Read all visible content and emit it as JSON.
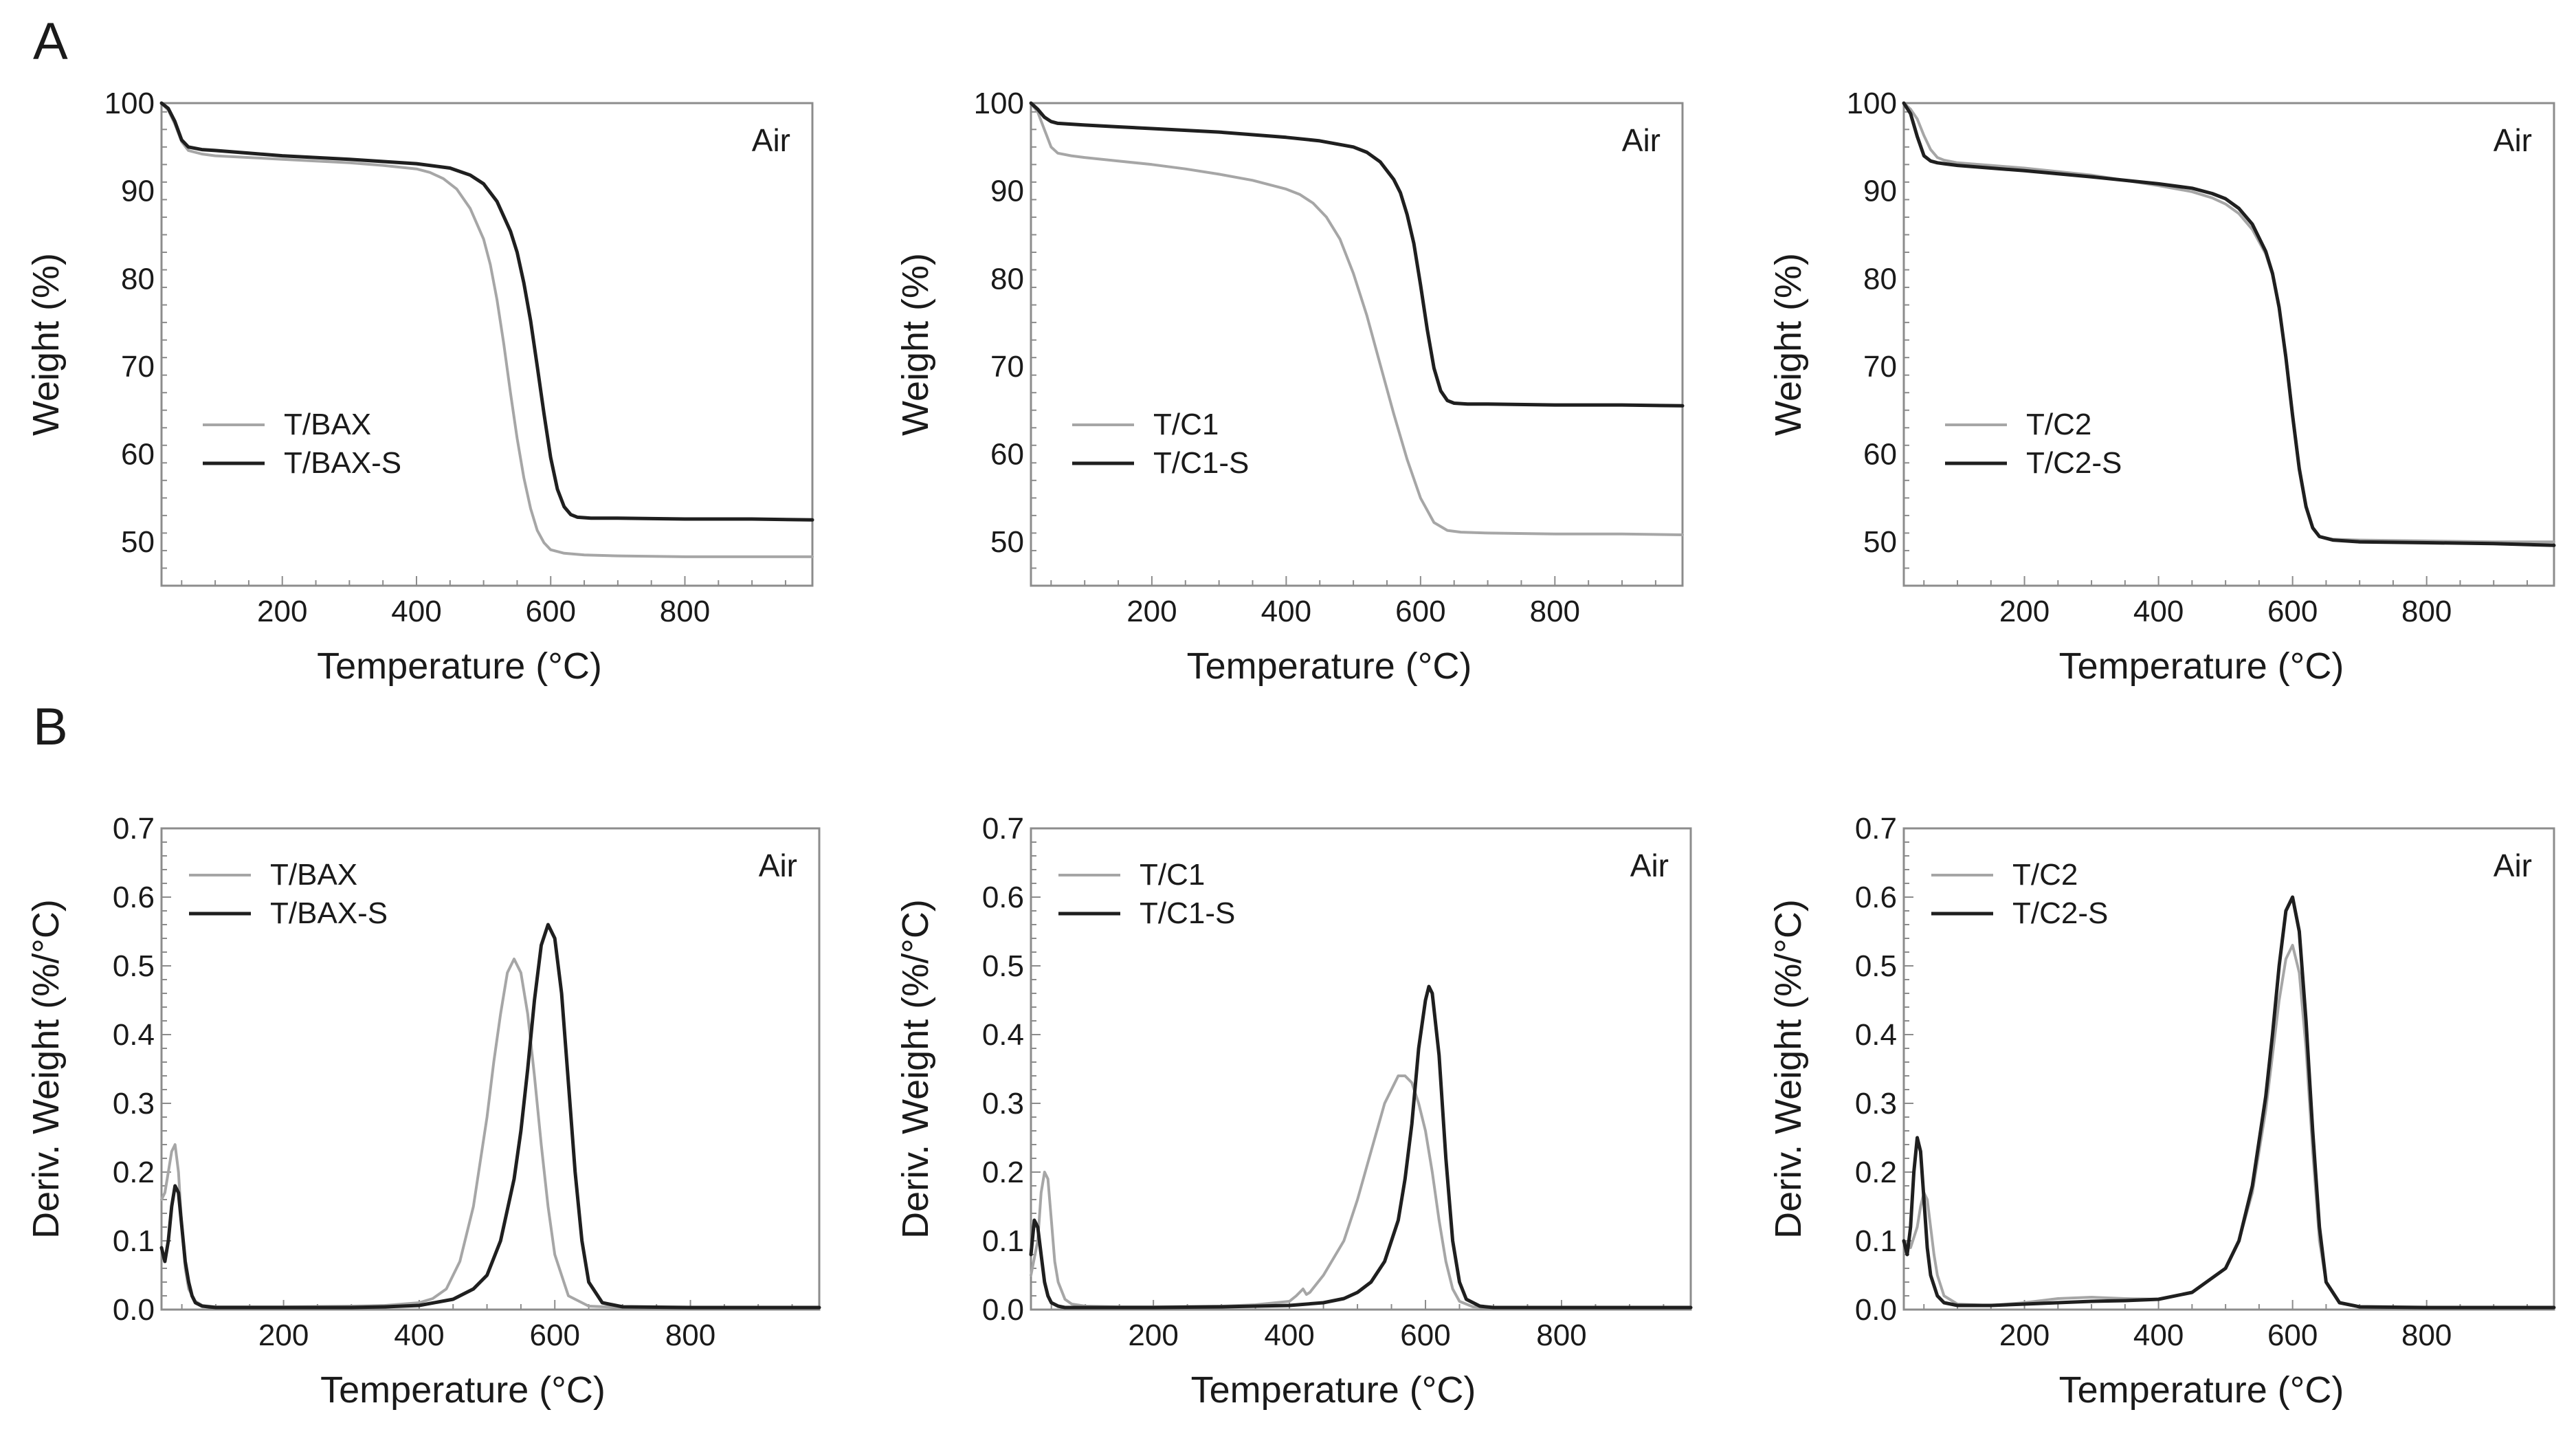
{
  "figure": {
    "panel_labels": [
      "A",
      "B"
    ]
  },
  "colors": {
    "series_light": "#a6a6a6",
    "series_dark": "#1f1f1f",
    "axis": "#8c8c8c",
    "text": "#1a1a1a"
  },
  "chart_data": [
    {
      "id": "A1",
      "type": "line",
      "xlabel": "Temperature (°C)",
      "ylabel": "Weight (%)",
      "xlim": [
        20,
        990
      ],
      "ylim": [
        45,
        100
      ],
      "xticks": [
        200,
        400,
        600,
        800
      ],
      "yticks": [
        50,
        60,
        70,
        80,
        90,
        100
      ],
      "annotation": "Air",
      "legend_position": "lower-left",
      "series": [
        {
          "name": "T/BAX",
          "color": "light",
          "x": [
            20,
            30,
            40,
            50,
            60,
            80,
            100,
            150,
            200,
            250,
            300,
            350,
            400,
            420,
            440,
            460,
            480,
            500,
            510,
            520,
            530,
            540,
            550,
            560,
            570,
            580,
            590,
            600,
            620,
            650,
            700,
            800,
            900,
            990
          ],
          "y": [
            100,
            99.2,
            97.6,
            95.6,
            94.6,
            94.2,
            94.0,
            93.8,
            93.6,
            93.4,
            93.2,
            92.9,
            92.5,
            92.1,
            91.4,
            90.2,
            88.0,
            84.5,
            81.6,
            77.6,
            72.6,
            67.0,
            61.8,
            57.3,
            53.8,
            51.3,
            49.9,
            49.1,
            48.7,
            48.5,
            48.4,
            48.3,
            48.3,
            48.3
          ]
        },
        {
          "name": "T/BAX-S",
          "color": "dark",
          "x": [
            20,
            30,
            40,
            50,
            60,
            80,
            100,
            150,
            200,
            300,
            400,
            450,
            480,
            500,
            520,
            540,
            550,
            560,
            570,
            580,
            590,
            600,
            610,
            620,
            630,
            640,
            660,
            700,
            800,
            900,
            990
          ],
          "y": [
            100,
            99.4,
            97.9,
            95.8,
            95.0,
            94.7,
            94.6,
            94.3,
            94.0,
            93.6,
            93.1,
            92.6,
            91.8,
            90.8,
            88.8,
            85.4,
            83.0,
            79.5,
            75.2,
            70.0,
            64.6,
            59.6,
            56.0,
            54.0,
            53.1,
            52.8,
            52.7,
            52.7,
            52.6,
            52.6,
            52.5
          ]
        }
      ]
    },
    {
      "id": "A2",
      "type": "line",
      "xlabel": "Temperature (°C)",
      "ylabel": "Weight (%)",
      "xlim": [
        20,
        990
      ],
      "ylim": [
        45,
        100
      ],
      "xticks": [
        200,
        400,
        600,
        800
      ],
      "yticks": [
        50,
        60,
        70,
        80,
        90,
        100
      ],
      "annotation": "Air",
      "legend_position": "lower-left",
      "series": [
        {
          "name": "T/C1",
          "color": "light",
          "x": [
            20,
            30,
            40,
            50,
            60,
            80,
            100,
            150,
            200,
            250,
            300,
            350,
            400,
            420,
            440,
            460,
            480,
            500,
            520,
            540,
            560,
            580,
            600,
            620,
            640,
            660,
            700,
            800,
            900,
            990
          ],
          "y": [
            100,
            99.0,
            97.0,
            95.0,
            94.3,
            94.0,
            93.8,
            93.4,
            93.0,
            92.5,
            91.9,
            91.2,
            90.2,
            89.6,
            88.6,
            87.0,
            84.5,
            80.6,
            75.8,
            70.2,
            64.6,
            59.4,
            55.0,
            52.2,
            51.3,
            51.1,
            51.0,
            50.9,
            50.9,
            50.8
          ]
        },
        {
          "name": "T/C1-S",
          "color": "dark",
          "x": [
            20,
            30,
            40,
            50,
            60,
            80,
            100,
            150,
            200,
            300,
            400,
            450,
            500,
            520,
            540,
            560,
            570,
            580,
            590,
            600,
            610,
            620,
            630,
            640,
            650,
            670,
            700,
            800,
            900,
            990
          ],
          "y": [
            100,
            99.3,
            98.4,
            97.9,
            97.7,
            97.6,
            97.5,
            97.3,
            97.1,
            96.7,
            96.1,
            95.7,
            95.0,
            94.4,
            93.3,
            91.3,
            89.8,
            87.3,
            84.0,
            79.3,
            74.2,
            69.8,
            67.2,
            66.1,
            65.8,
            65.7,
            65.7,
            65.6,
            65.6,
            65.5
          ]
        }
      ]
    },
    {
      "id": "A3",
      "type": "line",
      "xlabel": "Temperature (°C)",
      "ylabel": "Weight (%)",
      "xlim": [
        20,
        990
      ],
      "ylim": [
        45,
        100
      ],
      "xticks": [
        200,
        400,
        600,
        800
      ],
      "yticks": [
        50,
        60,
        70,
        80,
        90,
        100
      ],
      "annotation": "Air",
      "legend_position": "lower-left",
      "series": [
        {
          "name": "T/C2",
          "color": "light",
          "x": [
            20,
            30,
            40,
            50,
            60,
            70,
            80,
            100,
            150,
            200,
            300,
            400,
            450,
            480,
            500,
            520,
            540,
            560,
            570,
            580,
            590,
            600,
            610,
            620,
            630,
            640,
            660,
            700,
            800,
            900,
            990
          ],
          "y": [
            100,
            99.3,
            98.2,
            96.3,
            94.7,
            93.8,
            93.5,
            93.2,
            92.9,
            92.6,
            91.8,
            90.6,
            89.9,
            89.2,
            88.5,
            87.4,
            85.6,
            82.8,
            80.4,
            76.6,
            71.3,
            64.8,
            58.6,
            54.2,
            51.6,
            50.6,
            50.3,
            50.2,
            50.1,
            50.0,
            50.0
          ]
        },
        {
          "name": "T/C2-S",
          "color": "dark",
          "x": [
            20,
            30,
            40,
            50,
            60,
            70,
            80,
            100,
            150,
            200,
            300,
            400,
            450,
            480,
            500,
            520,
            540,
            560,
            570,
            580,
            590,
            600,
            610,
            620,
            630,
            640,
            660,
            700,
            800,
            900,
            990
          ],
          "y": [
            100,
            98.8,
            96.2,
            94.0,
            93.4,
            93.2,
            93.1,
            92.9,
            92.6,
            92.3,
            91.6,
            90.8,
            90.3,
            89.7,
            89.1,
            88.0,
            86.2,
            83.1,
            80.6,
            76.7,
            71.0,
            64.4,
            58.3,
            54.0,
            51.6,
            50.6,
            50.2,
            50.0,
            49.9,
            49.8,
            49.6
          ]
        }
      ]
    },
    {
      "id": "B1",
      "type": "line",
      "xlabel": "Temperature (°C)",
      "ylabel": "Deriv. Weight (%/°C)",
      "xlim": [
        20,
        990
      ],
      "ylim": [
        0,
        0.7
      ],
      "xticks": [
        200,
        400,
        600,
        800
      ],
      "yticks": [
        0.0,
        0.1,
        0.2,
        0.3,
        0.4,
        0.5,
        0.6,
        0.7
      ],
      "annotation": "Air",
      "legend_position": "top-left",
      "series": [
        {
          "name": "T/BAX",
          "color": "light",
          "x": [
            20,
            25,
            30,
            35,
            40,
            45,
            50,
            55,
            60,
            70,
            80,
            100,
            150,
            200,
            300,
            350,
            400,
            420,
            440,
            460,
            480,
            500,
            510,
            520,
            530,
            540,
            550,
            560,
            570,
            580,
            590,
            600,
            620,
            650,
            700,
            800,
            900,
            990
          ],
          "y": [
            0.16,
            0.17,
            0.2,
            0.23,
            0.24,
            0.2,
            0.12,
            0.06,
            0.03,
            0.012,
            0.006,
            0.004,
            0.004,
            0.004,
            0.005,
            0.006,
            0.01,
            0.016,
            0.03,
            0.07,
            0.15,
            0.28,
            0.36,
            0.43,
            0.49,
            0.51,
            0.49,
            0.43,
            0.34,
            0.24,
            0.15,
            0.08,
            0.02,
            0.005,
            0.003,
            0.003,
            0.003,
            0.003
          ]
        },
        {
          "name": "T/BAX-S",
          "color": "dark",
          "x": [
            20,
            25,
            30,
            35,
            40,
            45,
            50,
            55,
            60,
            65,
            70,
            80,
            100,
            150,
            200,
            300,
            350,
            400,
            450,
            480,
            500,
            520,
            540,
            550,
            560,
            570,
            580,
            590,
            600,
            610,
            620,
            630,
            640,
            650,
            670,
            700,
            800,
            900,
            990
          ],
          "y": [
            0.09,
            0.07,
            0.1,
            0.15,
            0.18,
            0.17,
            0.12,
            0.07,
            0.04,
            0.02,
            0.01,
            0.005,
            0.003,
            0.003,
            0.003,
            0.003,
            0.004,
            0.006,
            0.015,
            0.03,
            0.05,
            0.1,
            0.19,
            0.26,
            0.35,
            0.45,
            0.53,
            0.56,
            0.54,
            0.46,
            0.33,
            0.2,
            0.1,
            0.04,
            0.01,
            0.004,
            0.003,
            0.003,
            0.003
          ]
        }
      ]
    },
    {
      "id": "B2",
      "type": "line",
      "xlabel": "Temperature (°C)",
      "ylabel": "Deriv. Weight (%/°C)",
      "xlim": [
        20,
        990
      ],
      "ylim": [
        0,
        0.7
      ],
      "xticks": [
        200,
        400,
        600,
        800
      ],
      "yticks": [
        0.0,
        0.1,
        0.2,
        0.3,
        0.4,
        0.5,
        0.6,
        0.7
      ],
      "annotation": "Air",
      "legend_position": "top-left",
      "series": [
        {
          "name": "T/C1",
          "color": "light",
          "x": [
            20,
            30,
            35,
            40,
            45,
            50,
            55,
            60,
            70,
            80,
            100,
            150,
            200,
            300,
            350,
            400,
            410,
            420,
            425,
            430,
            450,
            480,
            500,
            520,
            540,
            560,
            570,
            580,
            590,
            600,
            610,
            620,
            630,
            640,
            650,
            670,
            700,
            800,
            900,
            990
          ],
          "y": [
            0.05,
            0.1,
            0.17,
            0.2,
            0.19,
            0.13,
            0.07,
            0.04,
            0.015,
            0.008,
            0.005,
            0.004,
            0.004,
            0.005,
            0.007,
            0.012,
            0.02,
            0.03,
            0.022,
            0.025,
            0.05,
            0.1,
            0.16,
            0.23,
            0.3,
            0.34,
            0.34,
            0.33,
            0.3,
            0.26,
            0.2,
            0.13,
            0.07,
            0.03,
            0.012,
            0.004,
            0.003,
            0.003,
            0.003,
            0.003
          ]
        },
        {
          "name": "T/C1-S",
          "color": "dark",
          "x": [
            20,
            25,
            30,
            35,
            40,
            45,
            50,
            60,
            70,
            100,
            150,
            200,
            300,
            400,
            450,
            480,
            500,
            520,
            540,
            560,
            570,
            580,
            590,
            600,
            605,
            610,
            620,
            630,
            640,
            650,
            660,
            680,
            700,
            800,
            900,
            990
          ],
          "y": [
            0.08,
            0.13,
            0.12,
            0.08,
            0.04,
            0.02,
            0.01,
            0.005,
            0.003,
            0.003,
            0.003,
            0.003,
            0.004,
            0.006,
            0.01,
            0.016,
            0.025,
            0.04,
            0.07,
            0.13,
            0.19,
            0.27,
            0.38,
            0.45,
            0.47,
            0.46,
            0.37,
            0.22,
            0.1,
            0.04,
            0.015,
            0.005,
            0.003,
            0.003,
            0.003,
            0.003
          ]
        }
      ]
    },
    {
      "id": "B3",
      "type": "line",
      "xlabel": "Temperature (°C)",
      "ylabel": "Deriv. Weight (%/°C)",
      "xlim": [
        20,
        990
      ],
      "ylim": [
        0,
        0.7
      ],
      "xticks": [
        200,
        400,
        600,
        800
      ],
      "yticks": [
        0.0,
        0.1,
        0.2,
        0.3,
        0.4,
        0.5,
        0.6,
        0.7
      ],
      "annotation": "Air",
      "legend_position": "top-left",
      "series": [
        {
          "name": "T/C2",
          "color": "light",
          "x": [
            20,
            30,
            40,
            45,
            50,
            55,
            60,
            65,
            70,
            80,
            100,
            150,
            200,
            250,
            300,
            350,
            400,
            450,
            500,
            520,
            540,
            560,
            570,
            580,
            590,
            600,
            610,
            620,
            630,
            640,
            650,
            670,
            700,
            800,
            900,
            990
          ],
          "y": [
            0.1,
            0.09,
            0.12,
            0.15,
            0.17,
            0.16,
            0.12,
            0.08,
            0.05,
            0.02,
            0.008,
            0.006,
            0.01,
            0.016,
            0.018,
            0.016,
            0.015,
            0.025,
            0.06,
            0.1,
            0.17,
            0.29,
            0.37,
            0.45,
            0.51,
            0.53,
            0.49,
            0.38,
            0.23,
            0.1,
            0.04,
            0.01,
            0.004,
            0.003,
            0.003,
            0.003
          ]
        },
        {
          "name": "T/C2-S",
          "color": "dark",
          "x": [
            20,
            25,
            30,
            35,
            40,
            45,
            50,
            55,
            60,
            70,
            80,
            100,
            150,
            200,
            250,
            300,
            350,
            400,
            450,
            500,
            520,
            540,
            560,
            570,
            580,
            590,
            600,
            610,
            620,
            630,
            640,
            650,
            670,
            700,
            800,
            900,
            990
          ],
          "y": [
            0.1,
            0.08,
            0.12,
            0.2,
            0.25,
            0.23,
            0.16,
            0.09,
            0.05,
            0.02,
            0.01,
            0.006,
            0.006,
            0.008,
            0.01,
            0.012,
            0.013,
            0.015,
            0.025,
            0.06,
            0.1,
            0.18,
            0.31,
            0.4,
            0.5,
            0.58,
            0.6,
            0.55,
            0.42,
            0.26,
            0.12,
            0.04,
            0.01,
            0.004,
            0.003,
            0.003,
            0.003
          ]
        }
      ]
    }
  ]
}
